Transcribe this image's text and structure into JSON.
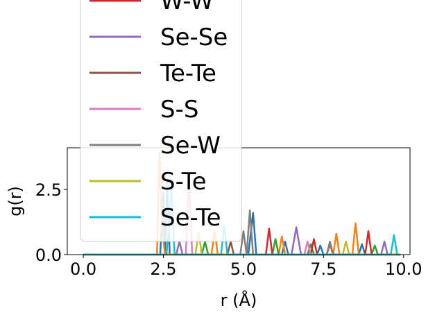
{
  "chart_data": {
    "type": "line",
    "xlabel": "r (Å)",
    "ylabel": "g(r)",
    "xlim": [
      -0.5,
      10.2
    ],
    "ylim": [
      0,
      4.1
    ],
    "xticks": [
      "0.0",
      "2.5",
      "5.0",
      "7.5",
      "10.0"
    ],
    "yticks": [
      "0.0",
      "2.5"
    ],
    "legend_position": "upper-left",
    "series": [
      {
        "name": "",
        "color": "#1f77b4",
        "x": [
          0,
          2.2,
          2.4,
          2.5,
          2.55,
          2.62,
          2.7,
          2.8,
          5.15,
          5.3,
          5.4,
          5.55,
          6.2,
          6.3,
          6.4,
          7.3,
          7.4,
          7.5,
          8.6,
          8.7,
          8.8,
          9.9
        ],
        "y": [
          0,
          0,
          0,
          2.4,
          0,
          2.8,
          0,
          0,
          0,
          1.6,
          0,
          0,
          0,
          0.5,
          0,
          0,
          0.35,
          0,
          0,
          0.4,
          0,
          0
        ]
      },
      {
        "name": "",
        "color": "#ff7f0e",
        "x": [
          0,
          2.2,
          2.3,
          2.38,
          2.45,
          2.55,
          4.0,
          4.1,
          4.2,
          6.1,
          6.2,
          6.3,
          7.8,
          7.9,
          8.0,
          8.4,
          8.5,
          8.6,
          9.9
        ],
        "y": [
          0,
          0,
          0,
          3.9,
          1.2,
          0,
          0,
          0.9,
          0,
          0,
          0.7,
          0,
          0,
          0.8,
          0,
          0,
          1.2,
          0,
          0
        ]
      },
      {
        "name": "",
        "color": "#2ca02c",
        "x": [
          0,
          3.7,
          3.8,
          3.9,
          5.9,
          6.0,
          6.1,
          7.0,
          7.1,
          7.2,
          9.0,
          9.1,
          9.2,
          9.9
        ],
        "y": [
          0,
          0,
          0.5,
          0,
          0,
          0.6,
          0,
          0,
          0.4,
          0,
          0,
          0.35,
          0,
          0
        ]
      },
      {
        "name": "W-W",
        "color": "#d62728",
        "x": [
          0,
          5.7,
          5.8,
          5.9,
          7.1,
          7.2,
          7.3,
          8.8,
          8.9,
          9.0,
          9.9
        ],
        "y": [
          0,
          0,
          1.0,
          0,
          0,
          0.6,
          0,
          0,
          0.9,
          0,
          0
        ]
      },
      {
        "name": "Se-Se",
        "color": "#9467bd",
        "x": [
          0,
          2.9,
          3.0,
          3.1,
          6.5,
          6.65,
          6.8,
          9.3,
          9.4,
          9.5,
          9.9
        ],
        "y": [
          0,
          0,
          0.5,
          0,
          0,
          1.05,
          0,
          0,
          0.5,
          0,
          0
        ]
      },
      {
        "name": "Te-Te",
        "color": "#8c564b",
        "x": [
          0,
          4.5,
          4.6,
          4.7,
          7.6,
          7.7,
          7.8,
          9.9
        ],
        "y": [
          0,
          0,
          0.5,
          0,
          0,
          0.4,
          0,
          0
        ]
      },
      {
        "name": "S-S",
        "color": "#e377c2",
        "x": [
          0,
          3.2,
          3.3,
          3.4,
          6.9,
          7.0,
          7.1,
          9.9
        ],
        "y": [
          0,
          0,
          2.9,
          0,
          0,
          0.5,
          0,
          0
        ]
      },
      {
        "name": "Se-W",
        "color": "#7f7f7f",
        "x": [
          0,
          4.9,
          5.0,
          5.1,
          5.2,
          5.3,
          7.6,
          7.7,
          7.8,
          9.9
        ],
        "y": [
          0,
          0,
          0.9,
          0,
          1.7,
          0,
          0,
          0.5,
          0,
          0
        ]
      },
      {
        "name": "S-Te",
        "color": "#bcbd22",
        "x": [
          0,
          3.5,
          3.6,
          3.7,
          8.1,
          8.2,
          8.3,
          9.9
        ],
        "y": [
          0,
          0,
          0.85,
          0,
          0,
          0.5,
          0,
          0
        ]
      },
      {
        "name": "Se-Te",
        "color": "#17becf",
        "x": [
          0,
          2.6,
          2.75,
          2.85,
          4.3,
          4.4,
          4.5,
          9.6,
          9.7,
          9.8,
          9.9
        ],
        "y": [
          0,
          0,
          2.5,
          0,
          0,
          1.1,
          0,
          0,
          0.75,
          0,
          0
        ]
      }
    ]
  }
}
